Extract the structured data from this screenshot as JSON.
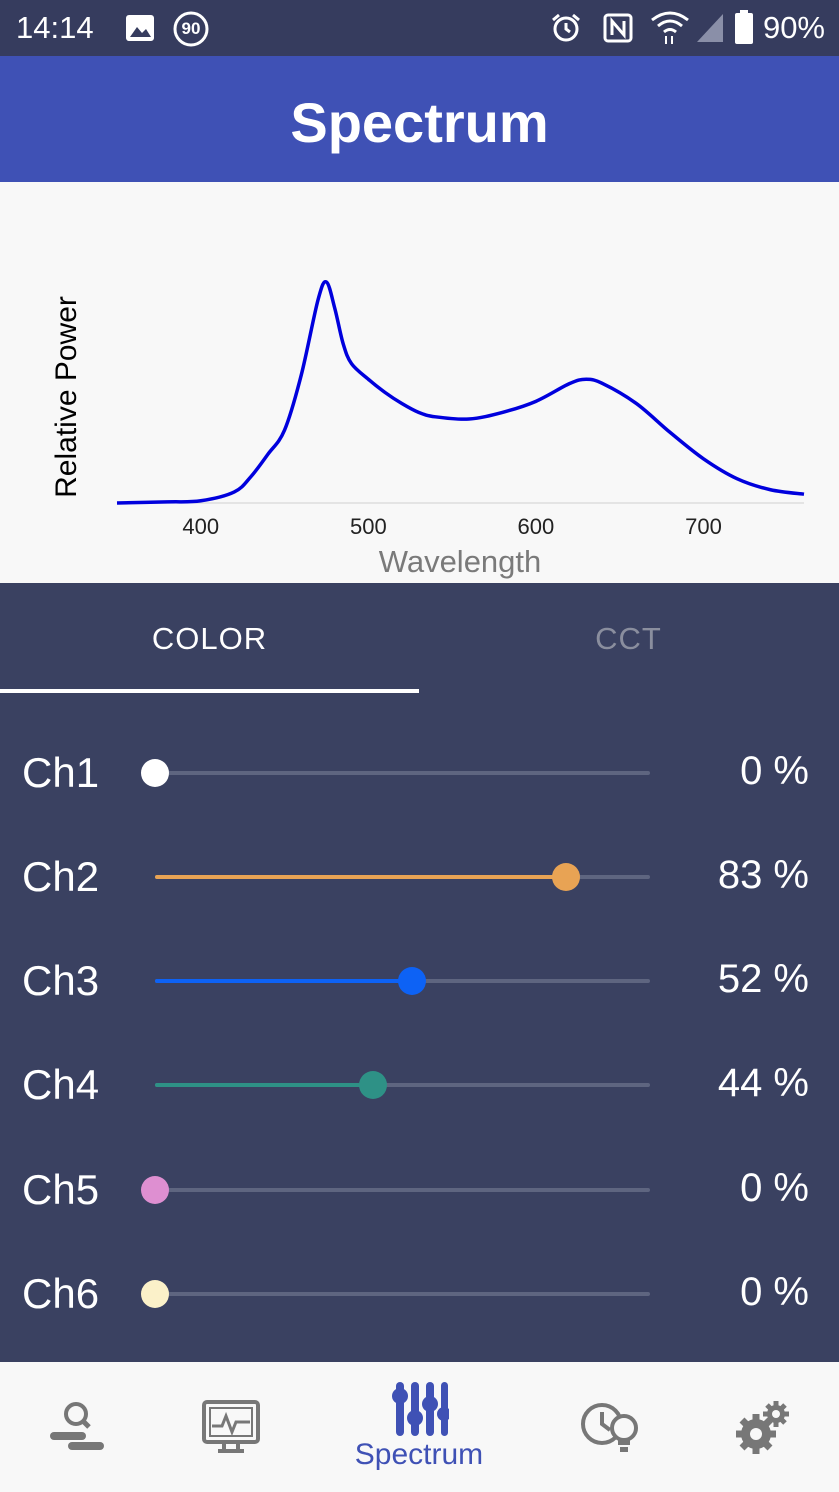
{
  "status_bar": {
    "time": "14:14",
    "badge": "90",
    "battery": "90%"
  },
  "app_bar": {
    "title": "Spectrum"
  },
  "chart_data": {
    "type": "line",
    "xlabel": "Wavelength",
    "ylabel": "Relative Power",
    "xlim": [
      350,
      760
    ],
    "ylim": [
      0,
      1
    ],
    "xticks": [
      "400",
      "500",
      "600",
      "700"
    ],
    "xtick_values": [
      400,
      500,
      600,
      700
    ],
    "series": [
      {
        "color": "#0000dd",
        "x": [
          350,
          380,
          400,
          420,
          430,
          440,
          450,
          460,
          470,
          475,
          480,
          485,
          490,
          500,
          510,
          520,
          530,
          540,
          560,
          580,
          600,
          620,
          630,
          640,
          660,
          680,
          700,
          720,
          740,
          760
        ],
        "y": [
          0.0,
          0.005,
          0.01,
          0.05,
          0.12,
          0.22,
          0.33,
          0.58,
          0.92,
          1.0,
          0.88,
          0.72,
          0.63,
          0.56,
          0.5,
          0.45,
          0.41,
          0.39,
          0.38,
          0.41,
          0.46,
          0.54,
          0.56,
          0.54,
          0.45,
          0.32,
          0.2,
          0.11,
          0.06,
          0.04
        ]
      }
    ]
  },
  "tabs": [
    {
      "label": "COLOR",
      "active": true
    },
    {
      "label": "CCT",
      "active": false
    }
  ],
  "channels": [
    {
      "label": "Ch1",
      "value": "0 %",
      "level": 0,
      "color": "#ffffff"
    },
    {
      "label": "Ch2",
      "value": "83 %",
      "level": 0.83,
      "color": "#e8a354"
    },
    {
      "label": "Ch3",
      "value": "52 %",
      "level": 0.52,
      "color": "#0d62f5"
    },
    {
      "label": "Ch4",
      "value": "44 %",
      "level": 0.44,
      "color": "#2e9186"
    },
    {
      "label": "Ch5",
      "value": "0 %",
      "level": 0,
      "color": "#de8fd1"
    },
    {
      "label": "Ch6",
      "value": "0 %",
      "level": 0,
      "color": "#fbf1c9"
    }
  ],
  "bottom_nav": {
    "items": [
      {
        "icon": "device-search-icon"
      },
      {
        "icon": "monitor-icon"
      },
      {
        "icon": "sliders-icon",
        "label": "Spectrum",
        "active": true
      },
      {
        "icon": "schedule-light-icon"
      },
      {
        "icon": "gears-icon"
      }
    ],
    "active_color": "#3f51b5"
  }
}
